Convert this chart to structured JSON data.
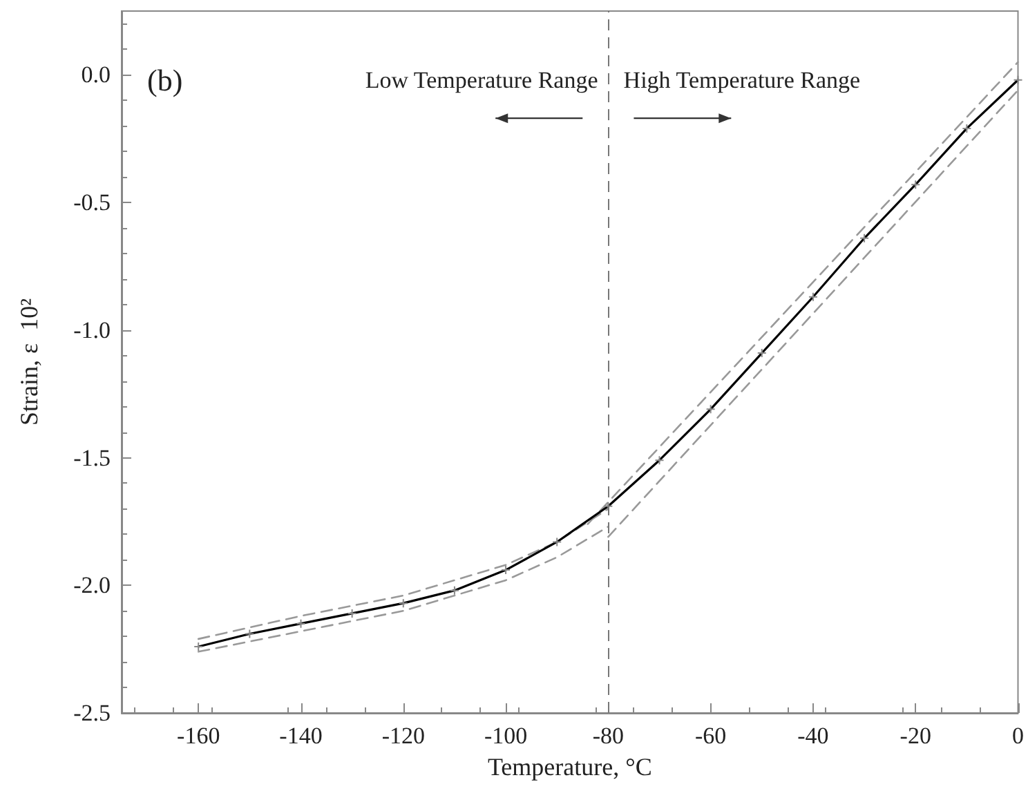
{
  "chart_data": {
    "type": "line",
    "xlabel": "Temperature, °C",
    "ylabel": "Strain, ε  10²",
    "xlim": [
      -175,
      0
    ],
    "xticks": [
      -160,
      -140,
      -120,
      -100,
      -80,
      -60,
      -40,
      -20,
      0
    ],
    "ylim": [
      -2.5,
      0.25
    ],
    "yticks": [
      -2.5,
      {
        "value": -2,
        "label": "-2.0"
      },
      -1.5,
      {
        "value": -1,
        "label": "-1.0"
      },
      -0.5,
      {
        "value": 0,
        "label": "0.0"
      }
    ],
    "grid": false,
    "series": [
      {
        "color": "#000000",
        "marker": "cross",
        "line_style": "solid",
        "x": [
          -160,
          -150,
          -140,
          -130,
          -120,
          -110,
          -100,
          -90,
          -80,
          -70,
          -60,
          -50,
          -40,
          -30,
          -20,
          -10,
          0
        ],
        "values": [
          -2.24,
          -2.19,
          -2.15,
          -2.11,
          -2.07,
          -2.02,
          -1.94,
          -1.83,
          -1.69,
          -1.51,
          -1.31,
          -1.09,
          -0.87,
          -0.64,
          -0.43,
          -0.21,
          -0.02
        ]
      },
      {
        "color": "#999999",
        "marker": "none",
        "line_style": "dashed",
        "x": [
          -160,
          -140,
          -120,
          -100,
          -90,
          -80
        ],
        "values": [
          -2.21,
          -2.12,
          -2.04,
          -1.92,
          -1.83,
          -1.7
        ]
      },
      {
        "color": "#999999",
        "marker": "none",
        "line_style": "dashed",
        "x": [
          -160,
          -140,
          -120,
          -100,
          -90,
          -80
        ],
        "values": [
          -2.26,
          -2.18,
          -2.1,
          -1.98,
          -1.89,
          -1.77
        ]
      },
      {
        "color": "#999999",
        "marker": "none",
        "line_style": "dashed",
        "x": [
          -84,
          0
        ],
        "values": [
          -1.76,
          0.05
        ]
      },
      {
        "color": "#999999",
        "marker": "none",
        "line_style": "dashed",
        "x": [
          -80,
          0
        ],
        "values": [
          -1.81,
          -0.06
        ]
      }
    ],
    "ref_lines": [
      {
        "axis": "x",
        "value": -80,
        "color": "#777777",
        "line_style": "dashed"
      }
    ],
    "annotations": [
      "(b)",
      "Low Temperature Range",
      "High Temperature Range"
    ]
  }
}
